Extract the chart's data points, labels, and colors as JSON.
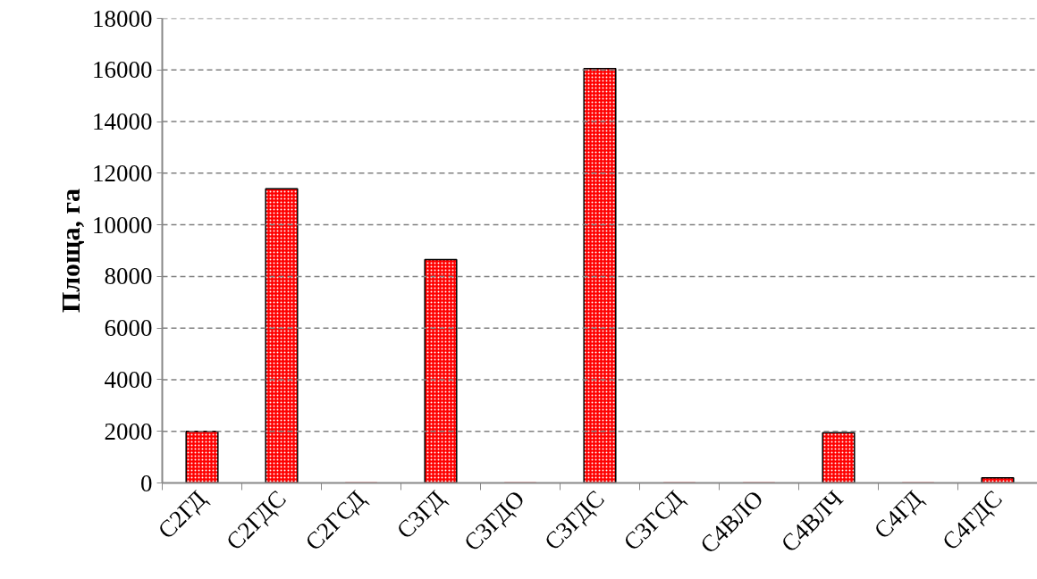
{
  "chart_data": {
    "type": "bar",
    "ylabel": "Площа, га",
    "categories": [
      "С2ГД",
      "С2ГДС",
      "С2ГСД",
      "С3ГД",
      "С3ГДО",
      "С3ГДС",
      "С3ГСД",
      "С4ВЛО",
      "С4ВЛЧ",
      "С4ГД",
      "С4ГДС"
    ],
    "values": [
      2000,
      11400,
      0,
      8650,
      0,
      16050,
      0,
      0,
      1950,
      0,
      200
    ],
    "color": "#ff0000",
    "ylim": [
      0,
      18000
    ],
    "yticks": [
      0,
      2000,
      4000,
      6000,
      8000,
      10000,
      12000,
      14000,
      16000,
      18000
    ],
    "grid": "y"
  }
}
